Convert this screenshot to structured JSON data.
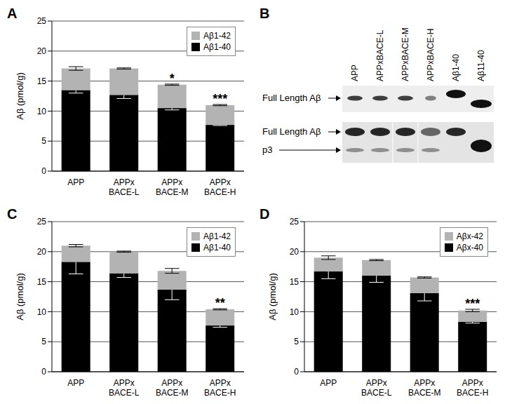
{
  "chart_data": [
    {
      "type": "bar",
      "title": "A",
      "stacked": true,
      "grid": true,
      "legend": "upper right",
      "y_label": "Aβ (pmol/g)",
      "categories": [
        "APP",
        "APPx BACE-L",
        "APPx BACE-M",
        "APPx BACE-H"
      ],
      "ylim": [
        0,
        25
      ],
      "yticks": [
        0,
        5,
        10,
        15,
        20,
        25
      ],
      "series": [
        {
          "name": "Aβ1-40",
          "color": "#000000",
          "values": [
            13.5,
            12.7,
            10.5,
            7.7
          ],
          "errors": [
            0.5,
            0.6,
            0.3,
            0.1
          ]
        },
        {
          "name": "Aβ1-42",
          "color": "#b3b3b3",
          "values": [
            3.6,
            4.4,
            3.9,
            3.3
          ],
          "errors": [
            0.3,
            0.1,
            0.1,
            0.1
          ]
        }
      ],
      "annotations": [
        null,
        null,
        "*",
        "***"
      ]
    },
    {
      "type": "bar",
      "title": "C",
      "stacked": true,
      "grid": true,
      "legend": "upper right",
      "y_label": "Aβ (pmol/g)",
      "categories": [
        "APP",
        "APPx BACE-L",
        "APPx BACE-M",
        "APPx BACE-H"
      ],
      "ylim": [
        0,
        25
      ],
      "yticks": [
        0,
        5,
        10,
        15,
        20,
        25
      ],
      "series": [
        {
          "name": "Aβ1-40",
          "color": "#000000",
          "values": [
            18.3,
            16.4,
            13.7,
            7.7
          ],
          "errors": [
            2.0,
            0.7,
            1.7,
            0.3
          ]
        },
        {
          "name": "Aβ1-42",
          "color": "#b3b3b3",
          "values": [
            2.7,
            3.6,
            3.1,
            2.7
          ],
          "errors": [
            0.2,
            0.1,
            0.4,
            0.1
          ]
        }
      ],
      "annotations": [
        null,
        null,
        null,
        "**"
      ]
    },
    {
      "type": "bar",
      "title": "D",
      "stacked": true,
      "grid": true,
      "legend": "upper right",
      "y_label": "Aβ (pmol/g)",
      "categories": [
        "APP",
        "APPx BACE-L",
        "APPx BACE-M",
        "APPx BACE-H"
      ],
      "ylim": [
        0,
        25
      ],
      "yticks": [
        0,
        5,
        10,
        15,
        20,
        25
      ],
      "series": [
        {
          "name": "Aβx-40",
          "color": "#000000",
          "values": [
            16.7,
            16.0,
            13.1,
            8.3
          ],
          "errors": [
            1.2,
            1.1,
            1.3,
            0.2
          ]
        },
        {
          "name": "Aβx-42",
          "color": "#b3b3b3",
          "values": [
            2.3,
            2.6,
            2.6,
            1.9
          ],
          "errors": [
            0.3,
            0.1,
            0.1,
            0.2
          ]
        }
      ],
      "annotations": [
        null,
        null,
        null,
        "***"
      ]
    }
  ],
  "panel_b": {
    "title": "B",
    "lanes": [
      "APP",
      "APPxBACE-L",
      "APPxBACE-M",
      "APPxBACE-H",
      "Aβ1-40",
      "Aβ11-40"
    ],
    "blots": [
      {
        "labels": [
          "Full Length Aβ"
        ]
      },
      {
        "labels": [
          "Full Length Aβ",
          "p3"
        ]
      }
    ]
  }
}
